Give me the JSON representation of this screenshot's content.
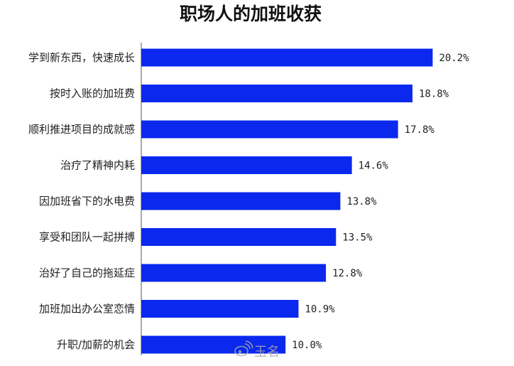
{
  "chart_data": {
    "type": "bar",
    "orientation": "horizontal",
    "title": "职场人的加班收获",
    "categories": [
      "学到新东西，快速成长",
      "按时入账的加班费",
      "顺利推进项目的成就感",
      "治疗了精神内耗",
      "因加班省下的水电费",
      "享受和团队一起拼搏",
      "治好了自己的拖延症",
      "加班加出办公室恋情",
      "升职/加薪的机会"
    ],
    "values": [
      20.2,
      18.8,
      17.8,
      14.6,
      13.8,
      13.5,
      12.8,
      10.9,
      10.0
    ],
    "value_labels": [
      "20.2%",
      "18.8%",
      "17.8%",
      "14.6%",
      "13.8%",
      "13.5%",
      "12.8%",
      "10.9%",
      "10.0%"
    ],
    "unit": "%",
    "xlim": [
      0,
      22
    ],
    "grid": false,
    "bar_color": "#0a28ee",
    "text_color": "#222222",
    "axis_color": "#555555"
  },
  "watermark": {
    "text": "玉名",
    "icon": "weibo-icon",
    "color": "#aaaaaa"
  }
}
